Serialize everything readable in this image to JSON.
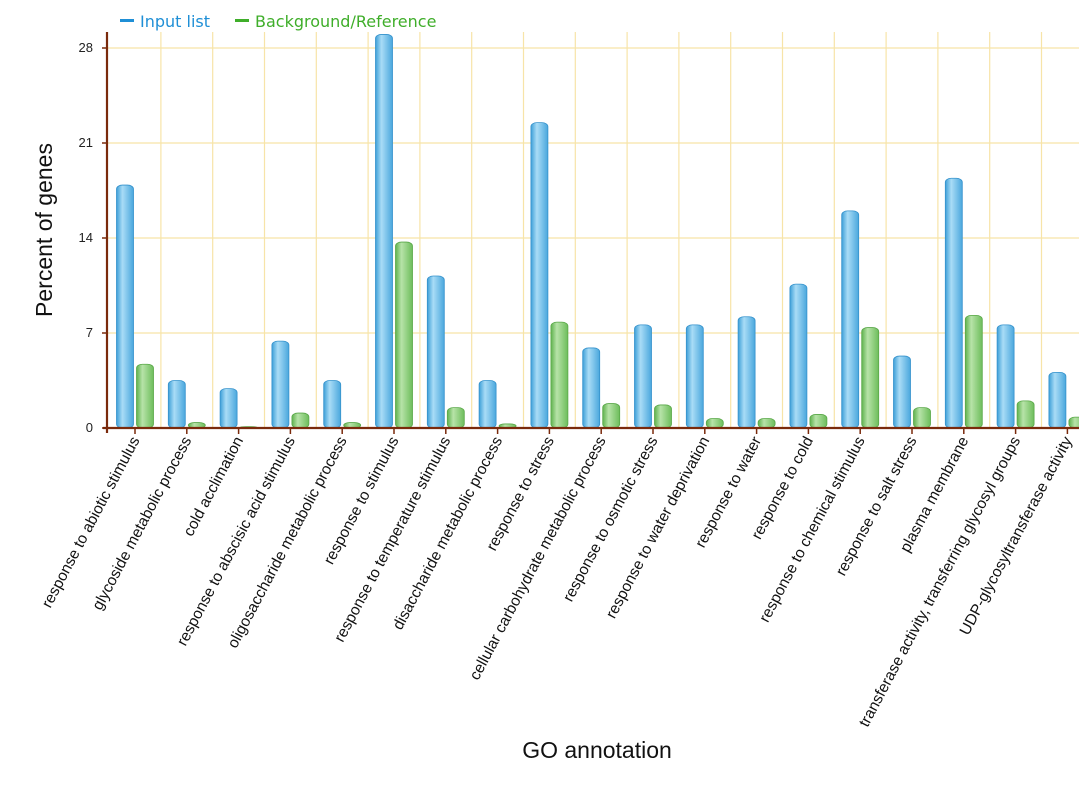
{
  "chart_data": {
    "type": "bar",
    "xlabel": "GO annotation",
    "ylabel": "Percent of genes",
    "ylim": [
      0,
      29
    ],
    "yticks": [
      0,
      7,
      14,
      21,
      28
    ],
    "grid": true,
    "legend_position": "top-left",
    "categories": [
      "response to abiotic stimulus",
      "glycoside metabolic process",
      "cold acclimation",
      "response to abscisic acid stimulus",
      "oligosaccharide metabolic process",
      "response to stimulus",
      "response to temperature stimulus",
      "disaccharide metabolic process",
      "response to stress",
      "cellular carbohydrate metabolic process",
      "response to osmotic stress",
      "response to water deprivation",
      "response to water",
      "response to cold",
      "response to chemical stimulus",
      "response to salt stress",
      "plasma membrane",
      "transferase activity, transferring glycosyl groups",
      "UDP-glycosyltransferase activity"
    ],
    "series": [
      {
        "name": "Input list",
        "color": "#5ab4e5",
        "values": [
          17.9,
          3.5,
          2.9,
          6.4,
          3.5,
          29.0,
          11.2,
          3.5,
          22.5,
          5.9,
          7.6,
          7.6,
          8.2,
          10.6,
          16.0,
          5.3,
          18.4,
          7.6,
          4.1
        ]
      },
      {
        "name": "Background/Reference",
        "color": "#7cc66a",
        "values": [
          4.7,
          0.4,
          0.1,
          1.1,
          0.4,
          13.7,
          1.5,
          0.3,
          7.8,
          1.8,
          1.7,
          0.7,
          0.7,
          1.0,
          7.4,
          1.5,
          8.3,
          2.0,
          0.8
        ]
      }
    ]
  }
}
